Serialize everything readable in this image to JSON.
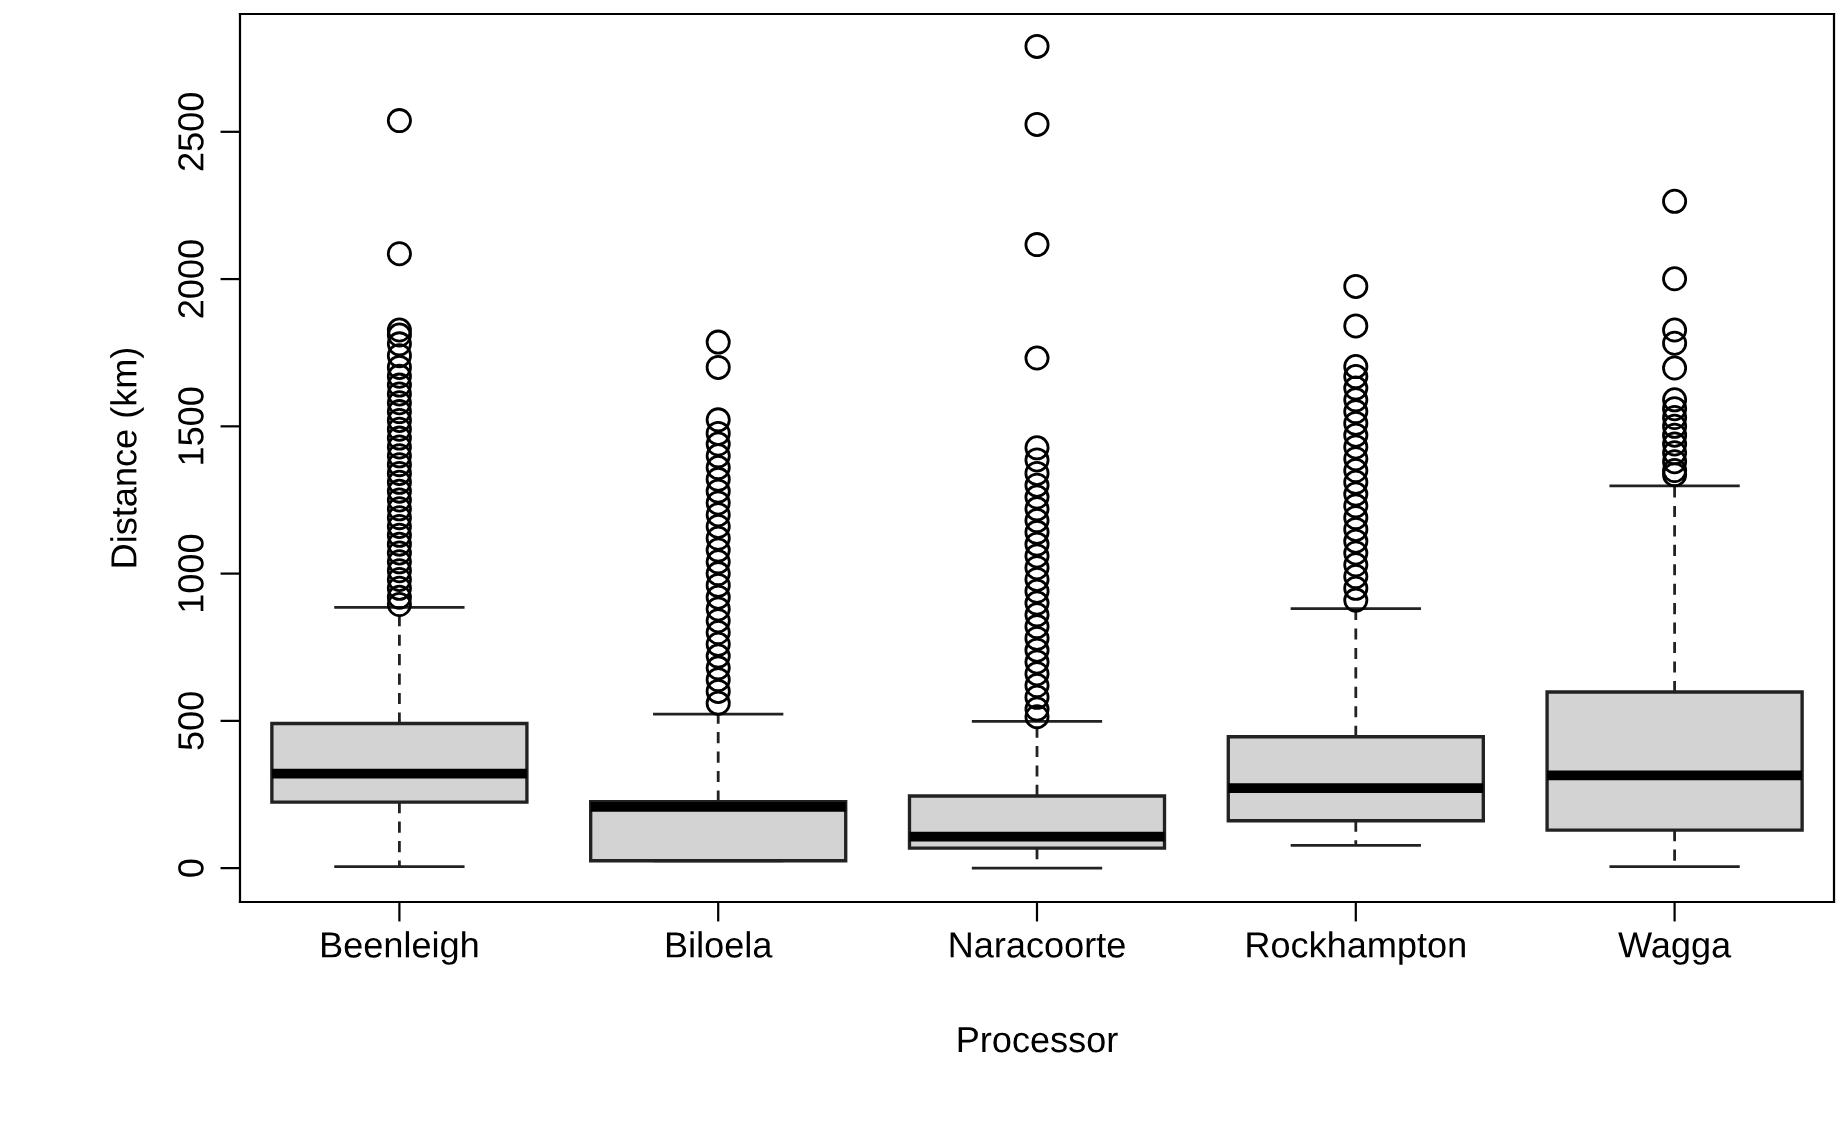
{
  "chart_data": {
    "type": "box",
    "xlabel": "Processor",
    "ylabel": "Distance (km)",
    "categories": [
      "Beenleigh",
      "Biloela",
      "Naracoorte",
      "Rockhampton",
      "Wagga"
    ],
    "color": "#d3d3d3",
    "ylim": [
      -115,
      2900
    ],
    "yticks": [
      0,
      500,
      1000,
      1500,
      2000,
      2500
    ],
    "grid": false,
    "marker": "circle",
    "boxes": [
      {
        "low": 5,
        "q1": 224,
        "median": 321,
        "q3": 491,
        "high": 885,
        "outliers": [
          2538,
          2086,
          1827,
          1810,
          1780,
          1740,
          1700,
          1670,
          1640,
          1610,
          1580,
          1550,
          1520,
          1490,
          1460,
          1430,
          1400,
          1370,
          1340,
          1310,
          1280,
          1250,
          1220,
          1190,
          1160,
          1130,
          1100,
          1070,
          1040,
          1010,
          980,
          950,
          920,
          895
        ]
      },
      {
        "low": 25,
        "q1": 25,
        "median": 208,
        "q3": 226,
        "high": 523,
        "outliers": [
          1786,
          1700,
          1522,
          1476,
          1440,
          1400,
          1360,
          1320,
          1280,
          1240,
          1200,
          1160,
          1120,
          1080,
          1040,
          1000,
          960,
          920,
          880,
          840,
          800,
          760,
          720,
          680,
          640,
          600,
          560
        ]
      },
      {
        "low": 0,
        "q1": 68,
        "median": 107,
        "q3": 245,
        "high": 498,
        "outliers": [
          2790,
          2525,
          2117,
          1732,
          1427,
          1386,
          1340,
          1300,
          1260,
          1220,
          1180,
          1140,
          1100,
          1060,
          1020,
          980,
          940,
          900,
          860,
          820,
          780,
          740,
          700,
          660,
          620,
          580,
          540,
          514
        ]
      },
      {
        "low": 77,
        "q1": 161,
        "median": 272,
        "q3": 446,
        "high": 881,
        "outliers": [
          1975,
          1841,
          1703,
          1669,
          1630,
          1590,
          1550,
          1510,
          1470,
          1430,
          1390,
          1350,
          1310,
          1270,
          1230,
          1190,
          1150,
          1110,
          1070,
          1030,
          990,
          950,
          910
        ]
      },
      {
        "low": 5,
        "q1": 129,
        "median": 315,
        "q3": 598,
        "high": 1298,
        "outliers": [
          2264,
          2001,
          1827,
          1782,
          1698,
          1590,
          1560,
          1530,
          1500,
          1470,
          1440,
          1410,
          1380,
          1350,
          1336
        ]
      }
    ]
  }
}
